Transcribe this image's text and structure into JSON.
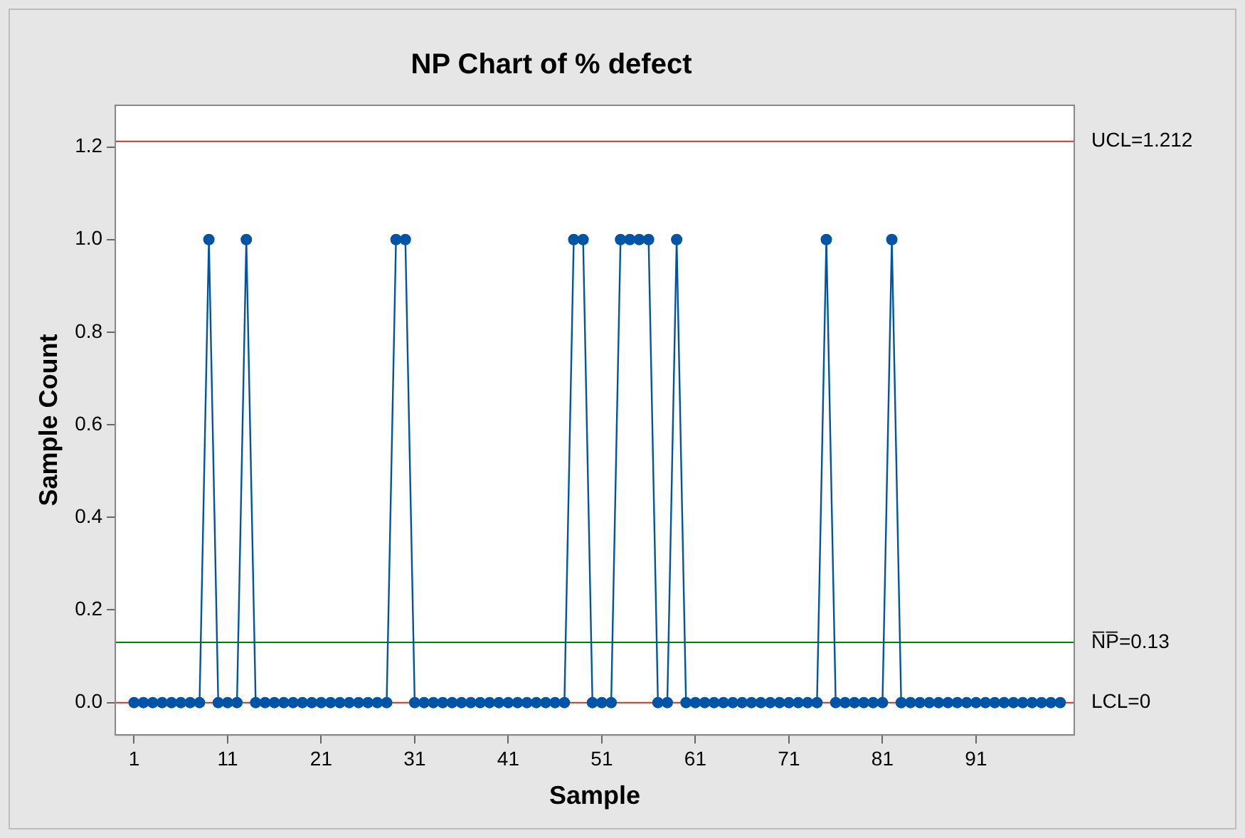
{
  "chart_data": {
    "type": "line",
    "title": "NP Chart of % defect",
    "xlabel": "Sample",
    "ylabel": "Sample Count",
    "x": [
      1,
      2,
      3,
      4,
      5,
      6,
      7,
      8,
      9,
      10,
      11,
      12,
      13,
      14,
      15,
      16,
      17,
      18,
      19,
      20,
      21,
      22,
      23,
      24,
      25,
      26,
      27,
      28,
      29,
      30,
      31,
      32,
      33,
      34,
      35,
      36,
      37,
      38,
      39,
      40,
      41,
      42,
      43,
      44,
      45,
      46,
      47,
      48,
      49,
      50,
      51,
      52,
      53,
      54,
      55,
      56,
      57,
      58,
      59,
      60,
      61,
      62,
      63,
      64,
      65,
      66,
      67,
      68,
      69,
      70,
      71,
      72,
      73,
      74,
      75,
      76,
      77,
      78,
      79,
      80,
      81,
      82,
      83,
      84,
      85,
      86,
      87,
      88,
      89,
      90,
      91,
      92,
      93,
      94,
      95,
      96,
      97,
      98,
      99,
      100
    ],
    "series": [
      {
        "color": "#0054a6",
        "values": [
          0,
          0,
          0,
          0,
          0,
          0,
          0,
          0,
          1,
          0,
          0,
          0,
          1,
          0,
          0,
          0,
          0,
          0,
          0,
          0,
          0,
          0,
          0,
          0,
          0,
          0,
          0,
          0,
          1,
          1,
          0,
          0,
          0,
          0,
          0,
          0,
          0,
          0,
          0,
          0,
          0,
          0,
          0,
          0,
          0,
          0,
          0,
          1,
          1,
          0,
          0,
          0,
          1,
          1,
          1,
          1,
          0,
          0,
          1,
          0,
          0,
          0,
          0,
          0,
          0,
          0,
          0,
          0,
          0,
          0,
          0,
          0,
          0,
          0,
          1,
          0,
          0,
          0,
          0,
          0,
          0,
          1,
          0,
          0,
          0,
          0,
          0,
          0,
          0,
          0,
          0,
          0,
          0,
          0,
          0,
          0,
          0,
          0,
          0,
          0
        ]
      }
    ],
    "xlim": [
      -1,
      101.5
    ],
    "ylim": [
      -0.07,
      1.29
    ],
    "xticks": [
      1,
      11,
      21,
      31,
      41,
      51,
      61,
      71,
      81,
      91
    ],
    "yticks": [
      {
        "value": 0,
        "label": "0.0"
      },
      {
        "value": 0.2,
        "label": "0.2"
      },
      {
        "value": 0.4,
        "label": "0.4"
      },
      {
        "value": 0.6,
        "label": "0.6"
      },
      {
        "value": 0.8,
        "label": "0.8"
      },
      {
        "value": 1,
        "label": "1.0"
      },
      {
        "value": 1.2,
        "label": "1.2"
      }
    ],
    "ref_lines": [
      {
        "axis": "y",
        "value": 1.212,
        "label": "UCL=1.212",
        "color": "#c0392b"
      },
      {
        "axis": "y",
        "value": 0.13,
        "label": "N̅P̅=0.13",
        "color": "#008000"
      },
      {
        "axis": "y",
        "value": 0,
        "label": "LCL=0",
        "color": "#c0392b"
      }
    ],
    "grid": false,
    "legend": false,
    "marker": "circle",
    "line_style": "solid"
  }
}
